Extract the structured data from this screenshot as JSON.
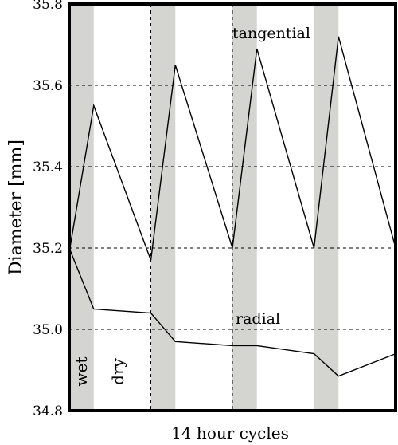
{
  "chart_data": {
    "type": "line",
    "title": "",
    "xlabel": "14 hour cycles",
    "ylabel": "Diameter [mm]",
    "ylim": [
      34.8,
      35.8
    ],
    "xlim": [
      0,
      4
    ],
    "yticks": [
      34.8,
      35.0,
      35.2,
      35.4,
      35.6,
      35.8
    ],
    "ytick_labels": [
      "34.8",
      "35.0",
      "35.2",
      "35.4",
      "35.6",
      "35.8"
    ],
    "grid": {
      "horizontal": [
        35.0,
        35.2,
        35.4,
        35.6
      ],
      "vertical": [
        1,
        2,
        3
      ],
      "style": "dashed"
    },
    "wet_periods": [
      [
        0,
        0.3
      ],
      [
        1,
        1.3
      ],
      [
        2,
        2.3
      ],
      [
        3,
        3.3
      ]
    ],
    "annotations": {
      "wet": "wet",
      "dry": "dry",
      "tangential": "tangential",
      "radial": "radial"
    },
    "series": [
      {
        "name": "tangential",
        "x": [
          0,
          0.3,
          1,
          1.3,
          2,
          2.3,
          3,
          3.3,
          4
        ],
        "y": [
          35.19,
          35.55,
          35.17,
          35.65,
          35.2,
          35.69,
          35.2,
          35.72,
          35.2
        ]
      },
      {
        "name": "radial",
        "x": [
          0,
          0.3,
          1,
          1.3,
          2,
          2.3,
          3,
          3.3,
          4
        ],
        "y": [
          35.2,
          35.05,
          35.04,
          34.97,
          34.96,
          34.96,
          34.94,
          34.885,
          34.94
        ]
      }
    ],
    "colors": {
      "shade": "#d4d4d0",
      "line": "#000000",
      "grid": "#000000",
      "background": "#ffffff"
    }
  }
}
